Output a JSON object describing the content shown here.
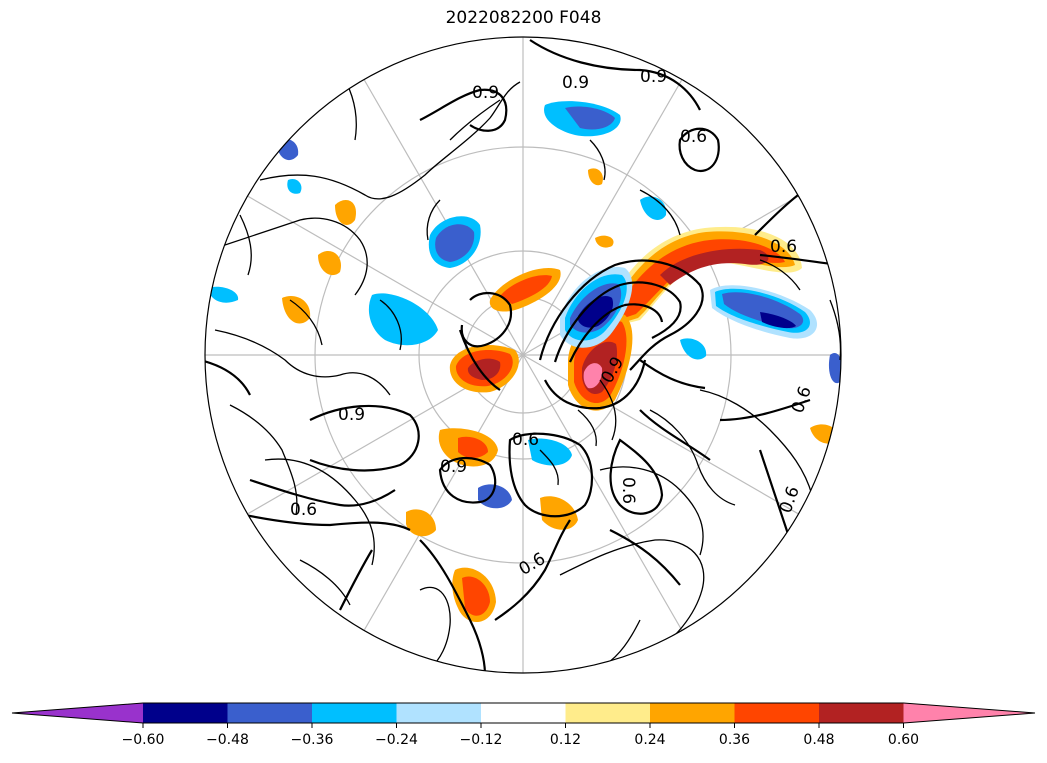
{
  "title": "2022082200 F048",
  "projection": "north-polar-stereographic",
  "contour_labels": [
    "0.9",
    "0.9",
    "0.6",
    "0.6",
    "0.6",
    "0.9",
    "0.6",
    "0.9",
    "0.9",
    "0.6",
    "0.6",
    "0.6",
    "0.9",
    "0.6"
  ],
  "colorbar": {
    "extend": "both",
    "tick_labels": [
      "−0.60",
      "−0.48",
      "−0.36",
      "−0.24",
      "−0.12",
      "0.12",
      "0.24",
      "0.36",
      "0.48",
      "0.60"
    ],
    "colors": [
      "#9932cc",
      "#00008b",
      "#3a5fcd",
      "#00bfff",
      "#b0e2ff",
      "#ffffff",
      "#ffec8b",
      "#ffa500",
      "#ff4500",
      "#b22222",
      "#ff82ab"
    ]
  }
}
